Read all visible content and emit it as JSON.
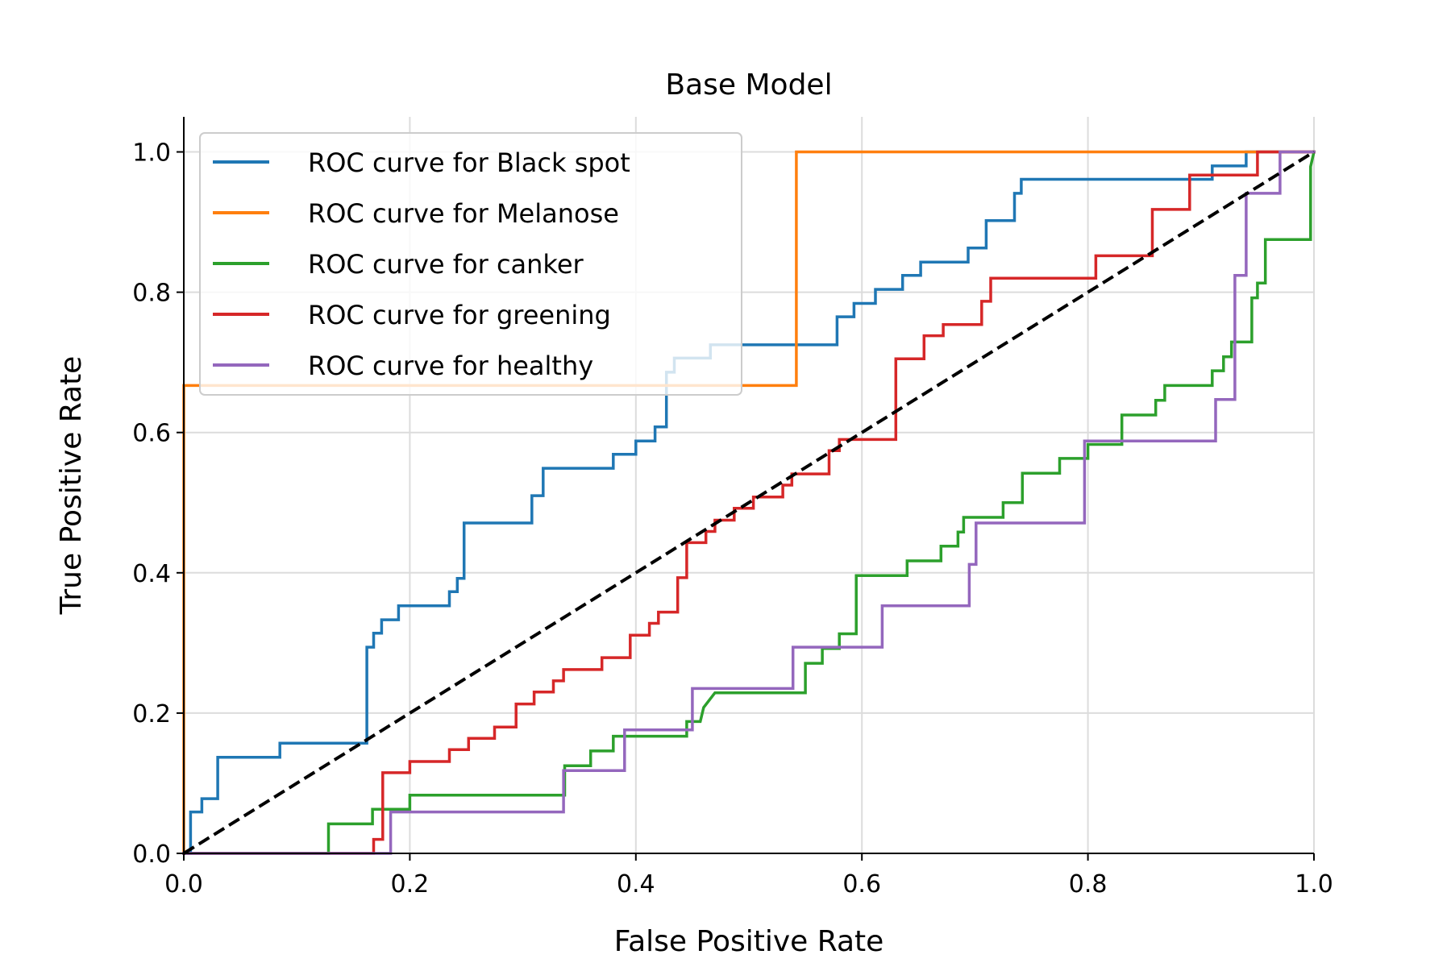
{
  "chart_data": {
    "type": "line",
    "title": "Base Model",
    "xlabel": "False Positive Rate",
    "ylabel": "True Positive Rate",
    "xlim": [
      0.0,
      1.0
    ],
    "ylim": [
      0.0,
      1.05
    ],
    "xticks": [
      "0.0",
      "0.2",
      "0.4",
      "0.6",
      "0.8",
      "1.0"
    ],
    "yticks": [
      "0.0",
      "0.2",
      "0.4",
      "0.6",
      "0.8",
      "1.0"
    ],
    "grid": true,
    "legend_position": "upper-left",
    "series": [
      {
        "name": "ROC curve for Black spot",
        "color": "#1f77b4",
        "x": [
          0.0,
          0.0,
          0.006,
          0.006,
          0.016,
          0.016,
          0.03,
          0.03,
          0.085,
          0.085,
          0.162,
          0.162,
          0.168,
          0.168,
          0.175,
          0.175,
          0.19,
          0.19,
          0.204,
          0.204,
          0.235,
          0.235,
          0.242,
          0.242,
          0.248,
          0.248,
          0.308,
          0.308,
          0.318,
          0.318,
          0.38,
          0.38,
          0.4,
          0.4,
          0.417,
          0.417,
          0.427,
          0.427,
          0.434,
          0.434,
          0.466,
          0.466,
          0.52,
          0.52,
          0.578,
          0.578,
          0.593,
          0.593,
          0.612,
          0.612,
          0.636,
          0.636,
          0.652,
          0.652,
          0.694,
          0.694,
          0.71,
          0.71,
          0.735,
          0.735,
          0.741,
          0.741,
          0.91,
          0.91,
          0.94,
          0.94,
          1.0
        ],
        "y": [
          0.0,
          0.0,
          0.0,
          0.059,
          0.059,
          0.078,
          0.078,
          0.137,
          0.137,
          0.157,
          0.157,
          0.294,
          0.294,
          0.314,
          0.314,
          0.333,
          0.333,
          0.353,
          0.353,
          0.353,
          0.353,
          0.373,
          0.373,
          0.392,
          0.392,
          0.471,
          0.471,
          0.51,
          0.51,
          0.549,
          0.549,
          0.569,
          0.569,
          0.588,
          0.588,
          0.608,
          0.608,
          0.686,
          0.686,
          0.706,
          0.706,
          0.725,
          0.725,
          0.725,
          0.725,
          0.765,
          0.765,
          0.784,
          0.784,
          0.804,
          0.804,
          0.824,
          0.824,
          0.843,
          0.843,
          0.863,
          0.863,
          0.902,
          0.902,
          0.941,
          0.941,
          0.961,
          0.961,
          0.98,
          0.98,
          1.0,
          1.0
        ]
      },
      {
        "name": "ROC curve for Melanose",
        "color": "#ff7f0e",
        "x": [
          0.0,
          0.0,
          0.542,
          0.542,
          1.0
        ],
        "y": [
          0.0,
          0.667,
          0.667,
          1.0,
          1.0
        ]
      },
      {
        "name": "ROC curve for canker",
        "color": "#2ca02c",
        "x": [
          0.0,
          0.128,
          0.128,
          0.167,
          0.167,
          0.2,
          0.2,
          0.337,
          0.337,
          0.36,
          0.36,
          0.38,
          0.38,
          0.445,
          0.445,
          0.457,
          0.457,
          0.46,
          0.46,
          0.47,
          0.47,
          0.55,
          0.55,
          0.565,
          0.565,
          0.58,
          0.58,
          0.595,
          0.595,
          0.64,
          0.64,
          0.67,
          0.67,
          0.685,
          0.685,
          0.69,
          0.69,
          0.725,
          0.725,
          0.742,
          0.742,
          0.775,
          0.775,
          0.8,
          0.8,
          0.83,
          0.83,
          0.86,
          0.86,
          0.868,
          0.868,
          0.91,
          0.91,
          0.92,
          0.92,
          0.927,
          0.927,
          0.945,
          0.945,
          0.95,
          0.95,
          0.957,
          0.957,
          0.965,
          0.965,
          0.997,
          0.997,
          1.0
        ],
        "y": [
          0.0,
          0.0,
          0.042,
          0.042,
          0.063,
          0.063,
          0.083,
          0.083,
          0.125,
          0.125,
          0.146,
          0.146,
          0.167,
          0.167,
          0.188,
          0.188,
          0.188,
          0.208,
          0.208,
          0.229,
          0.229,
          0.229,
          0.271,
          0.271,
          0.292,
          0.292,
          0.313,
          0.313,
          0.396,
          0.396,
          0.417,
          0.417,
          0.438,
          0.438,
          0.458,
          0.458,
          0.479,
          0.479,
          0.5,
          0.5,
          0.542,
          0.542,
          0.563,
          0.563,
          0.583,
          0.583,
          0.625,
          0.625,
          0.646,
          0.646,
          0.667,
          0.667,
          0.688,
          0.688,
          0.708,
          0.708,
          0.729,
          0.729,
          0.792,
          0.792,
          0.813,
          0.813,
          0.875,
          0.875,
          0.875,
          0.875,
          0.979,
          1.0
        ]
      },
      {
        "name": "ROC curve for greening",
        "color": "#d62728",
        "x": [
          0.0,
          0.168,
          0.168,
          0.176,
          0.176,
          0.2,
          0.2,
          0.235,
          0.235,
          0.252,
          0.252,
          0.275,
          0.275,
          0.294,
          0.294,
          0.31,
          0.31,
          0.327,
          0.327,
          0.336,
          0.336,
          0.37,
          0.37,
          0.395,
          0.395,
          0.412,
          0.412,
          0.42,
          0.42,
          0.437,
          0.437,
          0.445,
          0.445,
          0.462,
          0.462,
          0.47,
          0.47,
          0.487,
          0.487,
          0.504,
          0.504,
          0.53,
          0.53,
          0.538,
          0.538,
          0.571,
          0.571,
          0.58,
          0.58,
          0.63,
          0.63,
          0.655,
          0.655,
          0.672,
          0.672,
          0.706,
          0.706,
          0.714,
          0.714,
          0.807,
          0.807,
          0.857,
          0.857,
          0.89,
          0.89,
          0.95,
          0.95,
          1.0
        ],
        "y": [
          0.0,
          0.0,
          0.02,
          0.02,
          0.115,
          0.115,
          0.131,
          0.131,
          0.148,
          0.148,
          0.164,
          0.164,
          0.18,
          0.18,
          0.213,
          0.213,
          0.23,
          0.23,
          0.246,
          0.246,
          0.262,
          0.262,
          0.279,
          0.279,
          0.311,
          0.311,
          0.328,
          0.328,
          0.344,
          0.344,
          0.393,
          0.393,
          0.443,
          0.443,
          0.459,
          0.459,
          0.475,
          0.475,
          0.492,
          0.492,
          0.508,
          0.508,
          0.525,
          0.525,
          0.541,
          0.541,
          0.574,
          0.574,
          0.59,
          0.59,
          0.705,
          0.705,
          0.738,
          0.738,
          0.754,
          0.754,
          0.787,
          0.787,
          0.82,
          0.82,
          0.852,
          0.852,
          0.918,
          0.918,
          0.967,
          0.967,
          1.0,
          1.0
        ]
      },
      {
        "name": "ROC curve for healthy",
        "color": "#9467bd",
        "x": [
          0.0,
          0.183,
          0.183,
          0.336,
          0.336,
          0.39,
          0.39,
          0.45,
          0.45,
          0.539,
          0.539,
          0.618,
          0.618,
          0.695,
          0.695,
          0.701,
          0.701,
          0.797,
          0.797,
          0.913,
          0.913,
          0.93,
          0.93,
          0.94,
          0.94,
          0.97,
          0.97,
          0.985,
          0.985,
          1.0
        ],
        "y": [
          0.0,
          0.0,
          0.059,
          0.059,
          0.118,
          0.118,
          0.176,
          0.176,
          0.235,
          0.235,
          0.294,
          0.294,
          0.353,
          0.353,
          0.412,
          0.412,
          0.471,
          0.471,
          0.588,
          0.588,
          0.647,
          0.647,
          0.824,
          0.824,
          0.941,
          0.941,
          1.0,
          1.0,
          1.0,
          1.0
        ]
      },
      {
        "name": "",
        "color": "#000000",
        "dashed": true,
        "x": [
          0.0,
          1.0
        ],
        "y": [
          0.0,
          1.0
        ]
      }
    ]
  }
}
